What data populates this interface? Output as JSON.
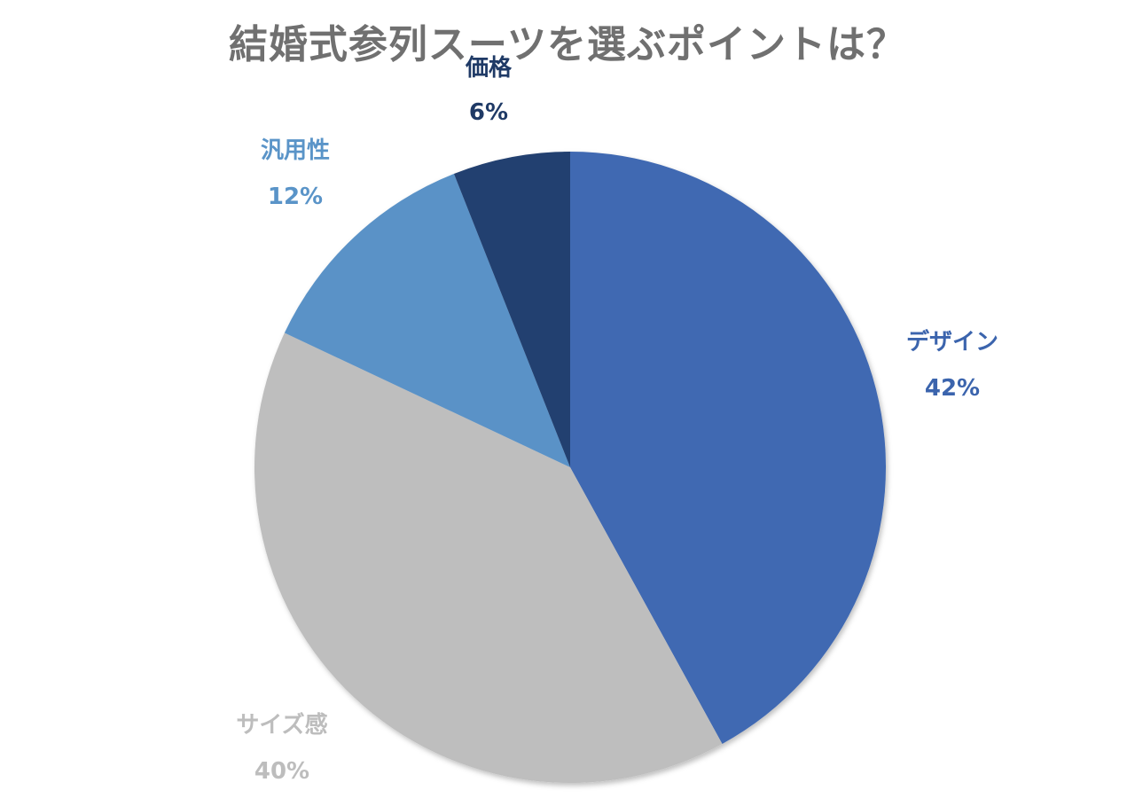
{
  "chart_data": {
    "type": "pie",
    "title": "結婚式参列スーツを選ぶポイントは？",
    "start_angle": "top",
    "direction": "clockwise",
    "categories": [
      "デザイン",
      "サイズ感",
      "汎用性",
      "価格"
    ],
    "values": [
      42,
      40,
      12,
      6
    ],
    "labels": [
      "42%",
      "40%",
      "12%",
      "6%"
    ],
    "colors": [
      "#4069b2",
      "#bebebe",
      "#5a92c7",
      "#223f6f"
    ],
    "label_colors": [
      "#3b64ad",
      "#bdbdbd",
      "#5a94c8",
      "#1f3a66"
    ],
    "legend": "none",
    "label_placement": "outside"
  }
}
